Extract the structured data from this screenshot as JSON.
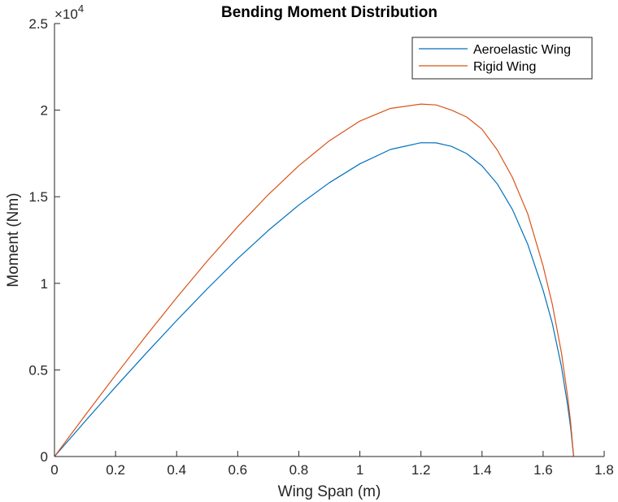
{
  "chart_data": {
    "type": "line",
    "title": "Bending Moment Distribution",
    "xlabel": "Wing Span (m)",
    "ylabel": "Moment (Nm)",
    "xlim": [
      0,
      1.8
    ],
    "ylim": [
      0,
      2.5
    ],
    "y_exponent_label": "×10",
    "y_exponent": "4",
    "xticks": [
      "0",
      "0.2",
      "0.4",
      "0.6",
      "0.8",
      "1",
      "1.2",
      "1.4",
      "1.6",
      "1.8"
    ],
    "yticks": [
      "0",
      "0.5",
      "1",
      "1.5",
      "2",
      "2.5"
    ],
    "legend_position": "top-right",
    "grid": false,
    "series": [
      {
        "name": "Aeroelastic Wing",
        "color": "#0072bd",
        "x": [
          0,
          0.1,
          0.2,
          0.3,
          0.4,
          0.5,
          0.6,
          0.7,
          0.8,
          0.9,
          1.0,
          1.1,
          1.2,
          1.25,
          1.3,
          1.35,
          1.4,
          1.45,
          1.5,
          1.55,
          1.6,
          1.63,
          1.66,
          1.68,
          1.69,
          1.7
        ],
        "y": [
          0,
          0.203,
          0.402,
          0.596,
          0.785,
          0.968,
          1.143,
          1.305,
          1.452,
          1.581,
          1.69,
          1.773,
          1.812,
          1.811,
          1.791,
          1.749,
          1.678,
          1.574,
          1.425,
          1.224,
          0.96,
          0.77,
          0.52,
          0.3,
          0.17,
          0
        ]
      },
      {
        "name": "Rigid Wing",
        "color": "#d95319",
        "x": [
          0,
          0.1,
          0.2,
          0.3,
          0.4,
          0.5,
          0.6,
          0.7,
          0.8,
          0.9,
          1.0,
          1.1,
          1.2,
          1.25,
          1.3,
          1.35,
          1.4,
          1.45,
          1.5,
          1.55,
          1.6,
          1.63,
          1.66,
          1.68,
          1.69,
          1.7
        ],
        "y": [
          0,
          0.237,
          0.47,
          0.697,
          0.917,
          1.128,
          1.327,
          1.512,
          1.679,
          1.823,
          1.937,
          2.01,
          2.035,
          2.03,
          2.0,
          1.96,
          1.89,
          1.77,
          1.61,
          1.4,
          1.1,
          0.88,
          0.6,
          0.35,
          0.2,
          0
        ]
      }
    ]
  }
}
